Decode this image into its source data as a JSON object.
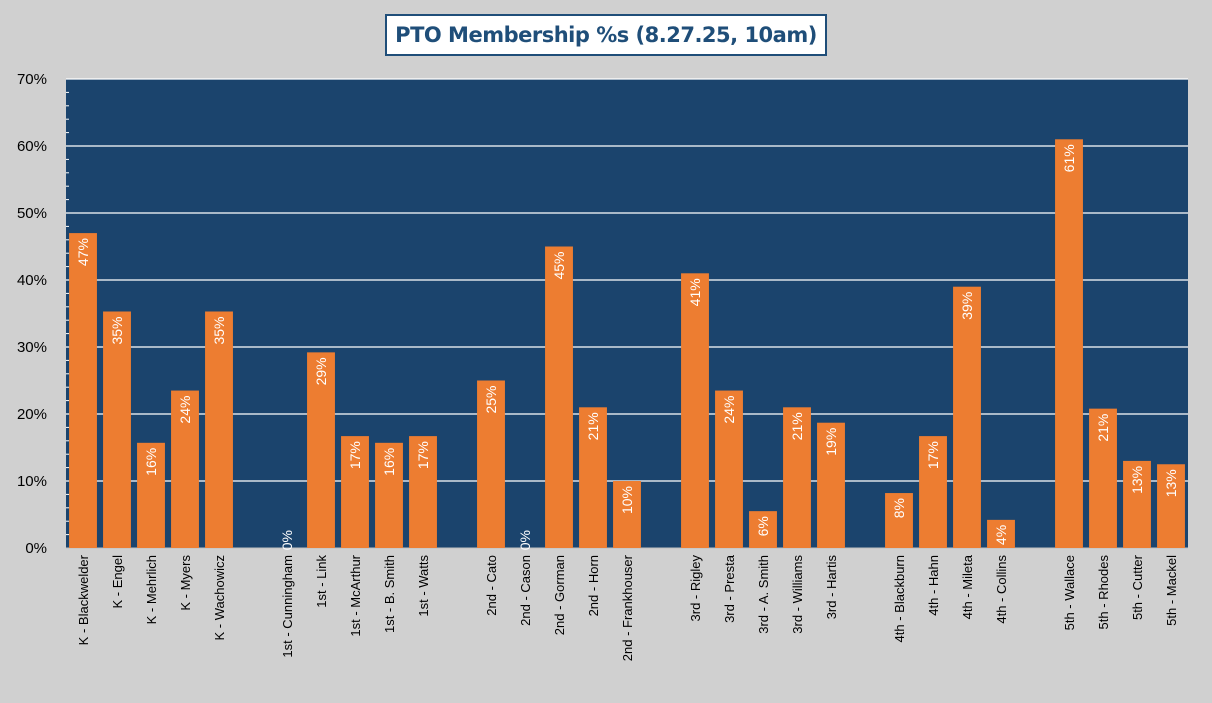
{
  "chart_data": {
    "type": "bar",
    "title": "PTO Membership %s (8.27.25, 10am)",
    "xlabel": "",
    "ylabel": "",
    "ylim": [
      0,
      70
    ],
    "yticks": [
      "0%",
      "10%",
      "20%",
      "30%",
      "40%",
      "50%",
      "60%",
      "70%"
    ],
    "grid": true,
    "legend": "none",
    "colors": {
      "bar": "#ed7d31",
      "plot_background": "#1b446d",
      "page_background": "#d0d0d0",
      "grid": "#ffffff",
      "title": "#1f4e79"
    },
    "categories": [
      "K - Blackwelder",
      "K - Engel",
      "K - Mehrlich",
      "K - Myers",
      "K - Wachowicz",
      "",
      "1st - Cunningham",
      "1st - Link",
      "1st - McArthur",
      "1st - B. Smith",
      "1st - Watts",
      "",
      "2nd - Cato",
      "2nd - Cason",
      "2nd - Gorman",
      "2nd - Horn",
      "2nd - Frankhouser",
      "",
      "3rd - Rigley",
      "3rd - Presta",
      "3rd - A. Smith",
      "3rd - Williams",
      "3rd - Hartis",
      "",
      "4th - Blackburn",
      "4th - Hahn",
      "4th - Mileta",
      "4th - Collins",
      "",
      "5th - Wallace",
      "5th - Rhodes",
      "5th - Cutter",
      "5th - Mackel"
    ],
    "values": [
      47,
      35.3,
      15.7,
      23.5,
      35.3,
      null,
      0,
      29.2,
      16.7,
      15.7,
      16.7,
      null,
      25,
      0,
      45,
      21,
      10,
      null,
      41,
      23.5,
      5.5,
      21,
      18.7,
      null,
      8.2,
      16.7,
      39,
      4.2,
      null,
      61,
      20.8,
      13,
      12.5
    ],
    "data_labels": [
      "47%",
      "35%",
      "16%",
      "24%",
      "35%",
      "",
      "0%",
      "29%",
      "17%",
      "16%",
      "17%",
      "",
      "25%",
      "0%",
      "45%",
      "21%",
      "10%",
      "",
      "41%",
      "24%",
      "6%",
      "21%",
      "19%",
      "",
      "8%",
      "17%",
      "39%",
      "4%",
      "",
      "61%",
      "21%",
      "13%",
      "13%"
    ]
  }
}
